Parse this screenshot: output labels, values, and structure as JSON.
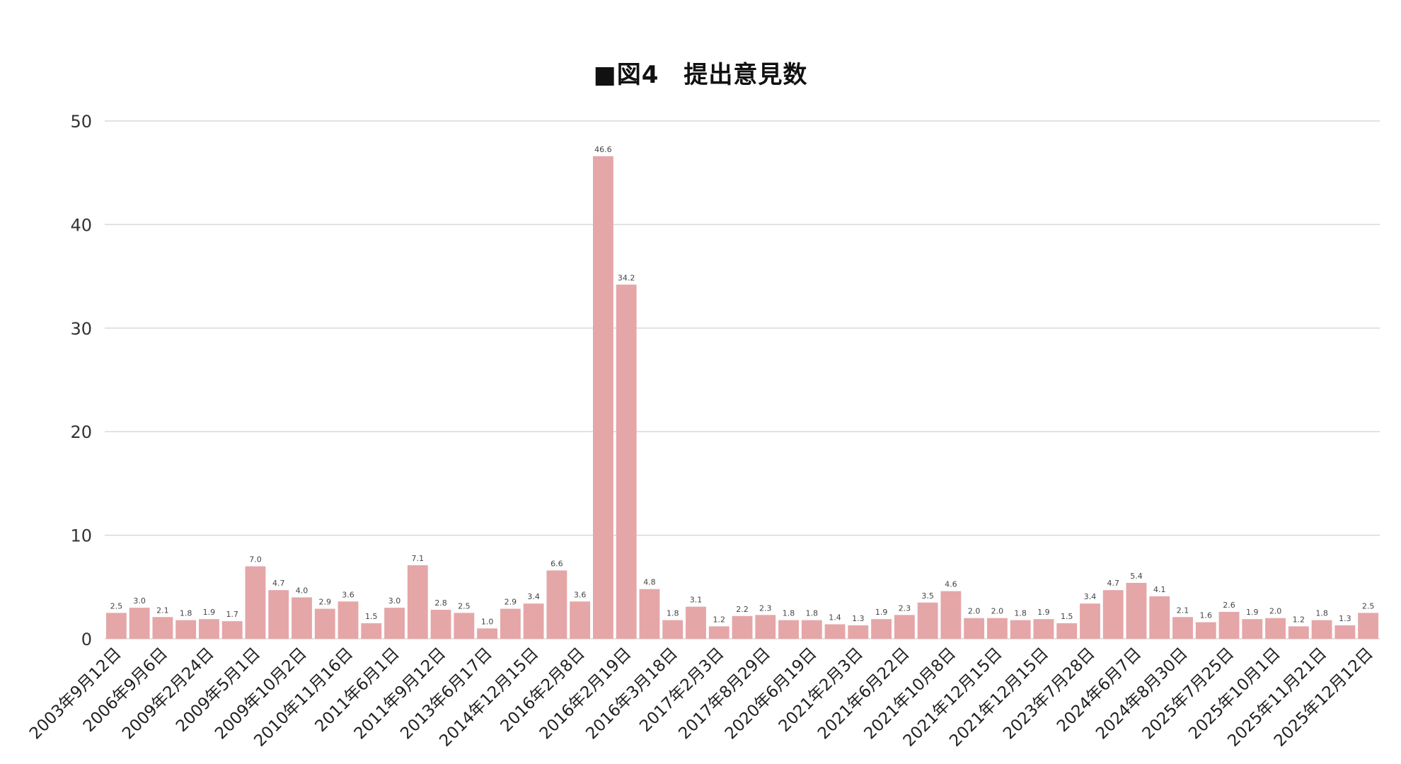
{
  "chart_data": {
    "type": "bar",
    "title": "■図4　提出意見数",
    "xlabel": "",
    "ylabel": "",
    "ylim": [
      0,
      50
    ],
    "yticks": [
      0,
      10,
      20,
      30,
      40,
      50
    ],
    "grid": true,
    "bar_color": "#e5a6a8",
    "gridline_color": "#d9d9d9",
    "categories": [
      "2003年9月12日",
      "",
      "2006年9月6日",
      "",
      "2009年2月24日",
      "",
      "2009年5月1日",
      "",
      "2009年10月2日",
      "",
      "2010年11月16日",
      "",
      "2011年6月1日",
      "",
      "2011年9月12日",
      "",
      "2013年6月17日",
      "",
      "2014年12月15日",
      "",
      "2016年2月8日",
      "",
      "2016年2月19日",
      "",
      "2016年3月18日",
      "",
      "2017年2月3日",
      "",
      "2017年8月29日",
      "",
      "2020年6月19日",
      "",
      "2021年2月3日",
      "",
      "2021年6月22日",
      "",
      "2021年10月8日",
      "",
      "2021年12月15日",
      "",
      "2021年12月15日",
      "",
      "2023年7月28日",
      "",
      "2024年6月7日",
      "",
      "2024年8月30日",
      "",
      "2025年7月25日",
      "",
      "2025年10月1日",
      "",
      "2025年11月21日",
      "",
      "2025年12月12日"
    ],
    "values": [
      2.5,
      3.0,
      2.1,
      1.8,
      1.9,
      1.7,
      7.0,
      4.7,
      4.0,
      2.9,
      3.6,
      1.5,
      3.0,
      7.1,
      2.8,
      2.5,
      1.0,
      2.9,
      3.4,
      6.6,
      3.6,
      46.6,
      34.2,
      4.8,
      1.8,
      3.1,
      1.2,
      2.2,
      2.3,
      1.8,
      1.8,
      1.4,
      1.3,
      1.9,
      2.3,
      3.5,
      4.6,
      2.0,
      2.0,
      1.8,
      1.9,
      1.5,
      3.4,
      4.7,
      5.4,
      4.1,
      2.1,
      1.6,
      2.6,
      1.9,
      2.0,
      1.2,
      1.8,
      1.3,
      2.5
    ],
    "data_labels": [
      "2.5",
      "3.0",
      "2.1",
      "1.8",
      "1.9",
      "1.7",
      "7.0",
      "4.7",
      "4.0",
      "2.9",
      "3.6",
      "1.5",
      "3.0",
      "7.1",
      "2.8",
      "2.5",
      "1.0",
      "2.9",
      "3.4",
      "6.6",
      "3.6",
      "46.6",
      "34.2",
      "4.8",
      "1.8",
      "3.1",
      "1.2",
      "2.2",
      "2.3",
      "1.8",
      "1.8",
      "1.4",
      "1.3",
      "1.9",
      "2.3",
      "3.5",
      "4.6",
      "2.0",
      "2.0",
      "1.8",
      "1.9",
      "1.5",
      "3.4",
      "4.7",
      "5.4",
      "4.1",
      "2.1",
      "1.6",
      "2.6",
      "1.9",
      "2.0",
      "1.2",
      "1.8",
      "1.3",
      "2.5"
    ]
  }
}
